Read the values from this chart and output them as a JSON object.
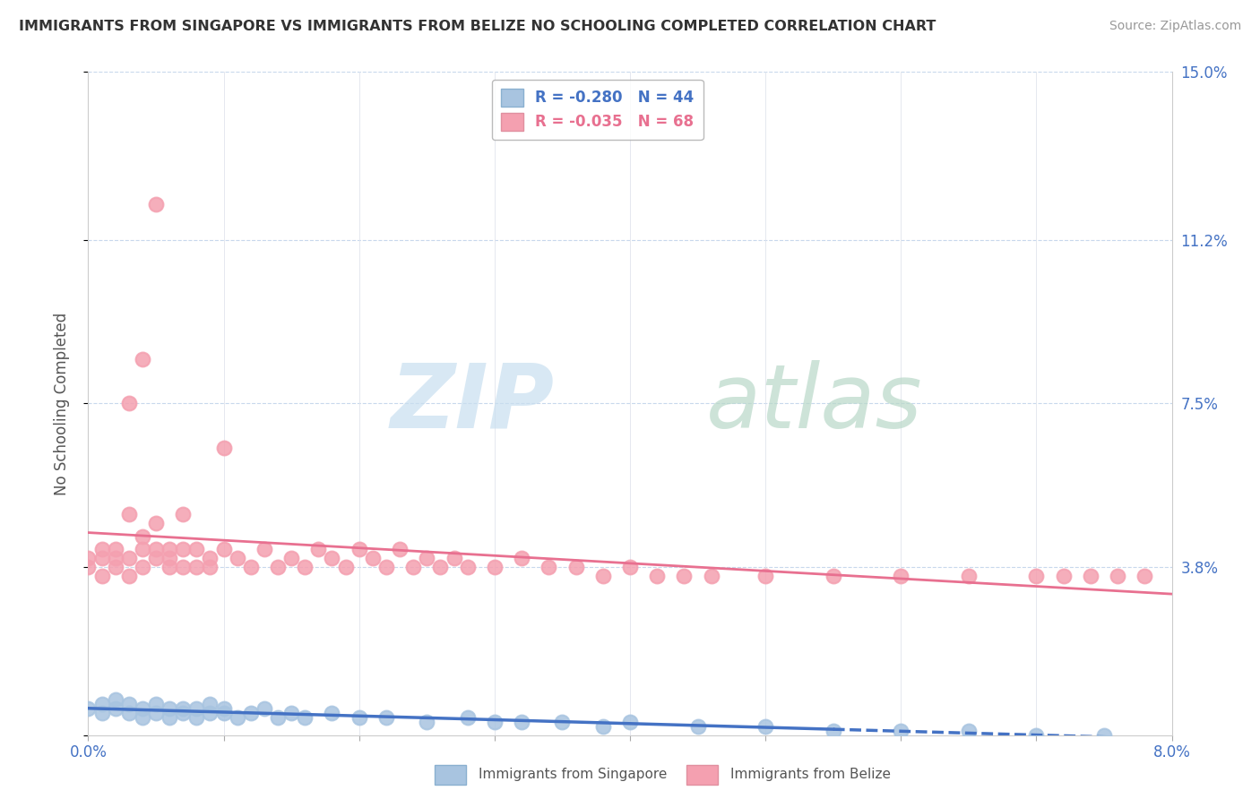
{
  "title": "IMMIGRANTS FROM SINGAPORE VS IMMIGRANTS FROM BELIZE NO SCHOOLING COMPLETED CORRELATION CHART",
  "source": "Source: ZipAtlas.com",
  "ylabel": "No Schooling Completed",
  "xlim": [
    0.0,
    0.08
  ],
  "ylim": [
    0.0,
    0.15
  ],
  "singapore_R": -0.28,
  "singapore_N": 44,
  "belize_R": -0.035,
  "belize_N": 68,
  "singapore_color": "#a8c4e0",
  "belize_color": "#f4a0b0",
  "singapore_line_color": "#4472c4",
  "belize_line_color": "#e87090",
  "watermark_zip_color": "#c8dff0",
  "watermark_atlas_color": "#b8d8c8",
  "sg_x": [
    0.0,
    0.001,
    0.001,
    0.002,
    0.002,
    0.003,
    0.003,
    0.004,
    0.004,
    0.005,
    0.005,
    0.006,
    0.006,
    0.007,
    0.007,
    0.008,
    0.008,
    0.009,
    0.009,
    0.01,
    0.01,
    0.011,
    0.012,
    0.013,
    0.014,
    0.015,
    0.016,
    0.018,
    0.02,
    0.022,
    0.025,
    0.028,
    0.03,
    0.032,
    0.035,
    0.038,
    0.04,
    0.045,
    0.05,
    0.055,
    0.06,
    0.065,
    0.07,
    0.075
  ],
  "sg_y": [
    0.006,
    0.007,
    0.005,
    0.006,
    0.008,
    0.005,
    0.007,
    0.006,
    0.004,
    0.007,
    0.005,
    0.006,
    0.004,
    0.006,
    0.005,
    0.006,
    0.004,
    0.005,
    0.007,
    0.005,
    0.006,
    0.004,
    0.005,
    0.006,
    0.004,
    0.005,
    0.004,
    0.005,
    0.004,
    0.004,
    0.003,
    0.004,
    0.003,
    0.003,
    0.003,
    0.002,
    0.003,
    0.002,
    0.002,
    0.001,
    0.001,
    0.001,
    0.0,
    0.0
  ],
  "bz_x": [
    0.0,
    0.0,
    0.001,
    0.001,
    0.001,
    0.002,
    0.002,
    0.002,
    0.003,
    0.003,
    0.003,
    0.004,
    0.004,
    0.004,
    0.005,
    0.005,
    0.005,
    0.006,
    0.006,
    0.006,
    0.007,
    0.007,
    0.007,
    0.008,
    0.008,
    0.009,
    0.009,
    0.01,
    0.01,
    0.011,
    0.012,
    0.013,
    0.014,
    0.015,
    0.016,
    0.017,
    0.018,
    0.019,
    0.02,
    0.021,
    0.022,
    0.023,
    0.024,
    0.025,
    0.026,
    0.027,
    0.028,
    0.03,
    0.032,
    0.034,
    0.036,
    0.038,
    0.04,
    0.042,
    0.044,
    0.046,
    0.05,
    0.055,
    0.06,
    0.065,
    0.07,
    0.072,
    0.074,
    0.076,
    0.078,
    0.003,
    0.004,
    0.005
  ],
  "bz_y": [
    0.038,
    0.04,
    0.036,
    0.042,
    0.04,
    0.038,
    0.04,
    0.042,
    0.036,
    0.04,
    0.05,
    0.042,
    0.045,
    0.038,
    0.04,
    0.042,
    0.048,
    0.038,
    0.042,
    0.04,
    0.038,
    0.042,
    0.05,
    0.038,
    0.042,
    0.04,
    0.038,
    0.042,
    0.065,
    0.04,
    0.038,
    0.042,
    0.038,
    0.04,
    0.038,
    0.042,
    0.04,
    0.038,
    0.042,
    0.04,
    0.038,
    0.042,
    0.038,
    0.04,
    0.038,
    0.04,
    0.038,
    0.038,
    0.04,
    0.038,
    0.038,
    0.036,
    0.038,
    0.036,
    0.036,
    0.036,
    0.036,
    0.036,
    0.036,
    0.036,
    0.036,
    0.036,
    0.036,
    0.036,
    0.036,
    0.075,
    0.085,
    0.12
  ]
}
